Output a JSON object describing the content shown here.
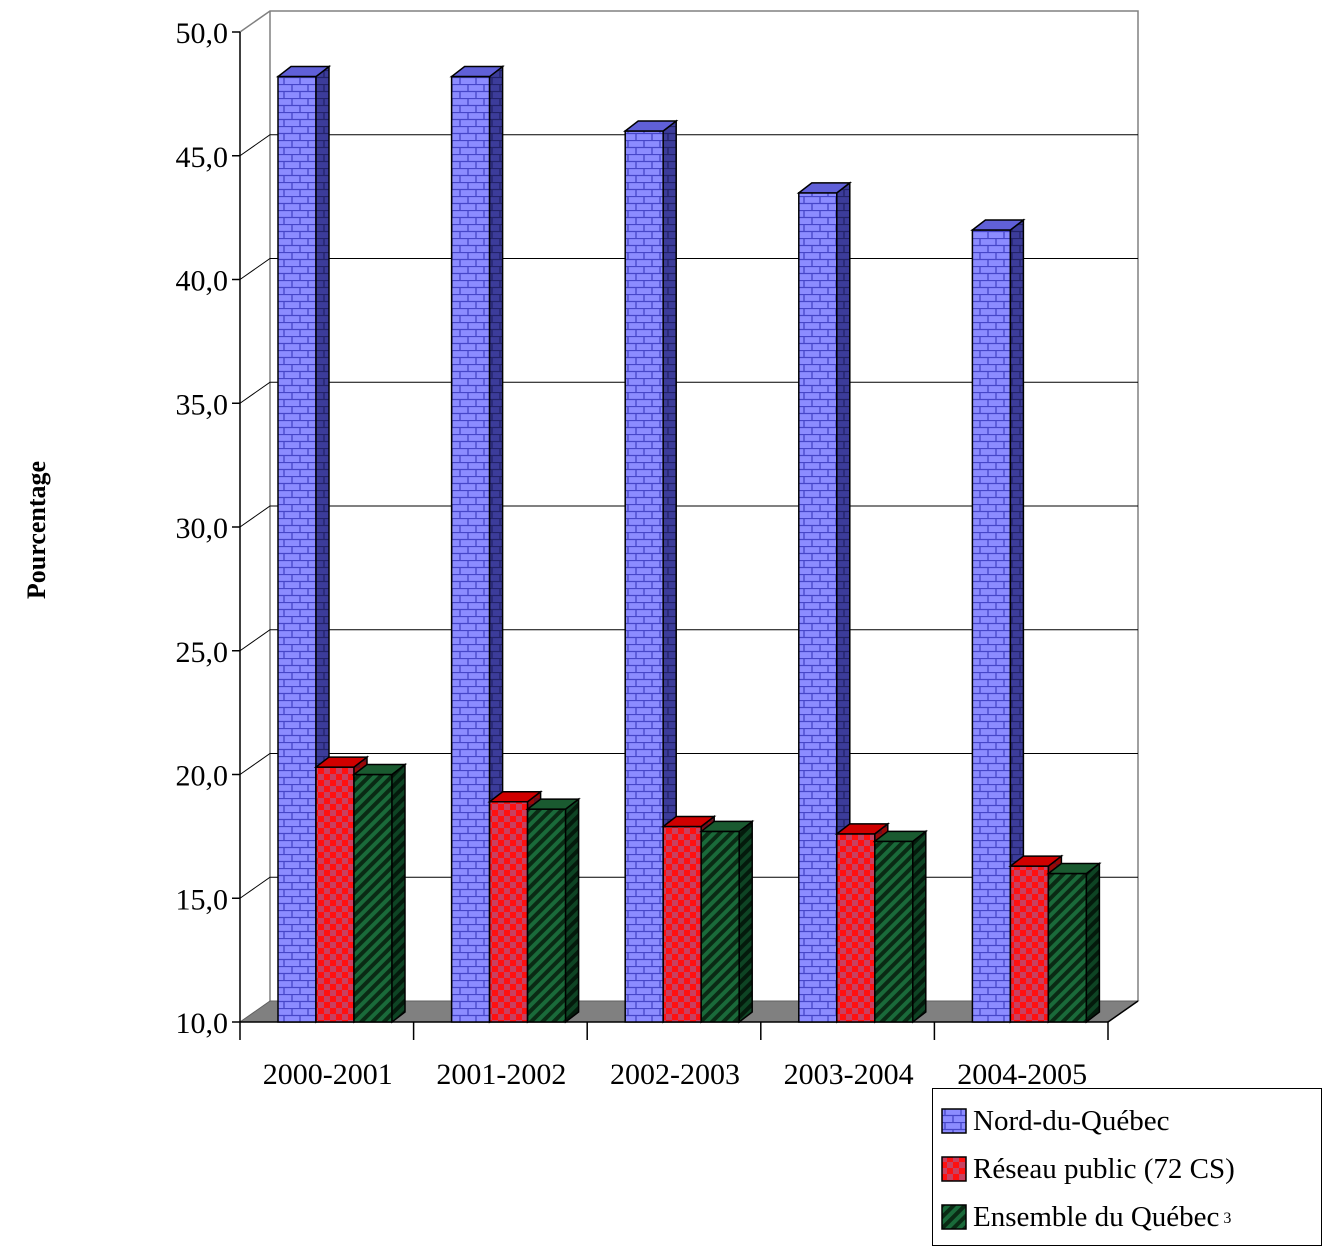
{
  "chart_data": {
    "type": "bar",
    "ylabel": "Pourcentage",
    "xlabel": "",
    "ylim": [
      10,
      50
    ],
    "y_ticks": [
      "10,0",
      "15,0",
      "20,0",
      "25,0",
      "30,0",
      "35,0",
      "40,0",
      "45,0",
      "50,0"
    ],
    "categories": [
      "2000-2001",
      "2001-2002",
      "2002-2003",
      "2003-2004",
      "2004-2005"
    ],
    "series": [
      {
        "name": "Nord-du-Québec",
        "values": [
          48.2,
          48.2,
          46.0,
          43.5,
          42.0
        ],
        "color": "#8080ff"
      },
      {
        "name": "Réseau public (72 CS)",
        "values": [
          20.3,
          18.9,
          17.9,
          17.6,
          16.3
        ],
        "color": "#ff0000"
      },
      {
        "name": "Ensemble du Québec",
        "superscript": "3",
        "values": [
          20.0,
          18.6,
          17.7,
          17.3,
          16.0
        ],
        "color": "#008040"
      }
    ],
    "grid": true,
    "legend_position": "bottom-right"
  }
}
